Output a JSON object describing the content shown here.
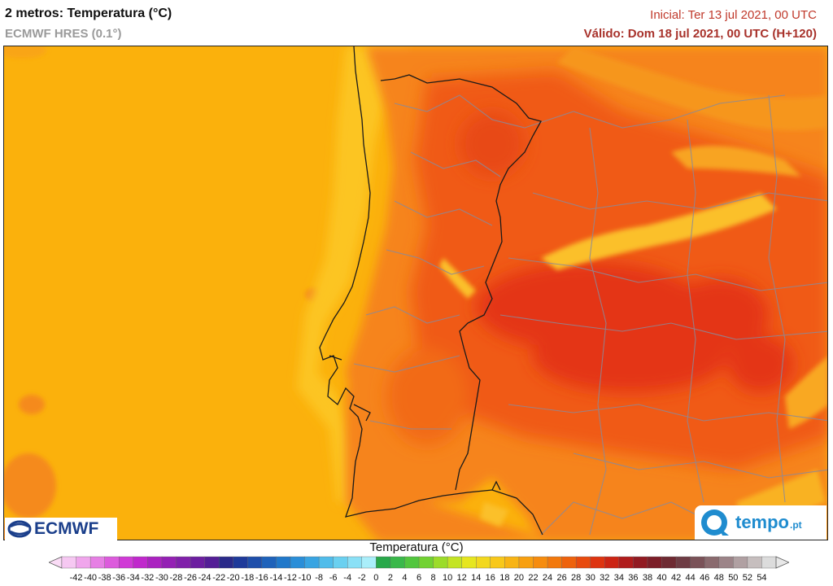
{
  "header": {
    "title": "2 metros: Temperatura (°C)",
    "model": "ECMWF HRES (0.1°)",
    "initial": "Inicial: Ter 13 jul 2021, 00 UTC",
    "valid": "Válido: Dom 18 jul 2021, 00 UTC (H+120)"
  },
  "logos": {
    "ecmwf": "ECMWF",
    "tempo": "tempo",
    "tempo_suffix": ".pt"
  },
  "legend": {
    "title": "Temperatura (°C)",
    "ticks": [
      -42,
      -40,
      -38,
      -36,
      -34,
      -32,
      -30,
      -28,
      -26,
      -24,
      -22,
      -20,
      -18,
      -16,
      -14,
      -12,
      -10,
      -8,
      -6,
      -4,
      -2,
      0,
      2,
      4,
      6,
      8,
      10,
      12,
      14,
      16,
      18,
      20,
      22,
      24,
      26,
      28,
      30,
      32,
      34,
      36,
      38,
      40,
      42,
      44,
      46,
      48,
      50,
      52,
      54
    ],
    "colors": [
      "#f6c8f2",
      "#f0a6ec",
      "#e67fe4",
      "#dc5bdc",
      "#d03ad6",
      "#c028cc",
      "#aa22c0",
      "#9420b4",
      "#8020aa",
      "#6c1ea0",
      "#541e96",
      "#2a2a8a",
      "#1e3a9a",
      "#1e4eaa",
      "#1e62ba",
      "#2078ca",
      "#2a8ed8",
      "#38a4e2",
      "#50bcea",
      "#6ad0f0",
      "#8ae0f6",
      "#aaeefa",
      "#28a84a",
      "#3ab84a",
      "#52c63e",
      "#72d232",
      "#9cdc2a",
      "#c4e424",
      "#e6e620",
      "#f2d81e",
      "#f8c81a",
      "#f8b414",
      "#f8a010",
      "#f68c0e",
      "#f2780c",
      "#ee620c",
      "#e84a0e",
      "#de3410",
      "#cc2414",
      "#b01c1c",
      "#921a22",
      "#7c1e28",
      "#6e2a32",
      "#6e3c44",
      "#7a5258",
      "#8a6a6e",
      "#9c8488",
      "#b0a0a2",
      "#c6bebe",
      "#dcdcdc"
    ],
    "under_color": "#fadcf6",
    "over_color": "#e8e8e8"
  },
  "map": {
    "ocean_color": "#fbb10c",
    "region": "Iberian Peninsula",
    "field_colors": {
      "coast_cool": "#fcc524",
      "warm": "#f6841a",
      "hot": "#f05a16",
      "very_hot": "#e43616"
    }
  }
}
